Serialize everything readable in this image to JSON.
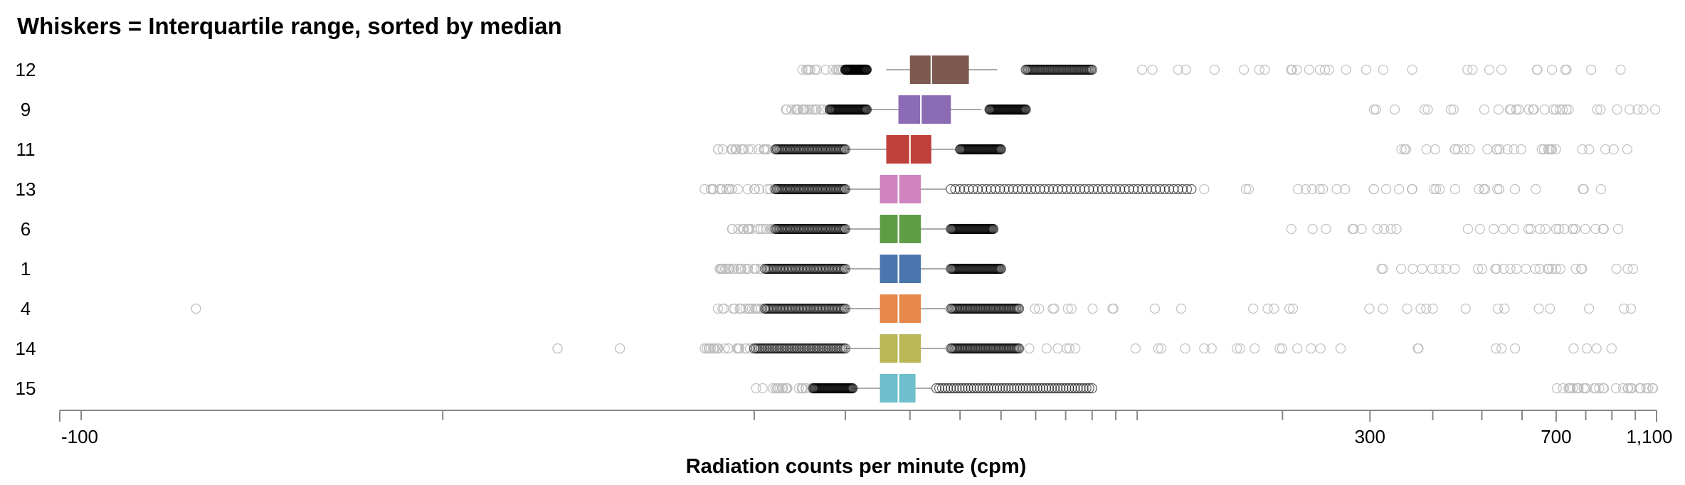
{
  "chart_data": {
    "type": "box",
    "title": "Whiskers = Interquartile range, sorted by median",
    "xlabel": "Radiation counts per minute (cpm)",
    "ylabel": "",
    "x_scale": "symlog",
    "xlim": [
      -100,
      1100
    ],
    "x_tick_labels": [
      {
        "value": -100,
        "label": "-100"
      },
      {
        "value": 300,
        "label": "300"
      },
      {
        "value": 700,
        "label": "700"
      },
      {
        "value": 1100,
        "label": "1,100"
      }
    ],
    "x_minor_ticks": [
      -90,
      -10,
      10,
      20,
      30,
      40,
      50,
      60,
      70,
      80,
      90,
      100,
      200,
      400,
      500,
      600,
      800,
      900,
      1000
    ],
    "grid": false,
    "legend": "none",
    "series": [
      {
        "name": "12",
        "color": "#7d5a50",
        "q1": 30,
        "median": 34,
        "q3": 42,
        "whisker_low": 26,
        "whisker_high": 49,
        "out_dense_low": [
          20,
          23
        ],
        "out_dense_high": [
          57,
          80
        ],
        "out_sparse_low": [
          14,
          22
        ],
        "out_sparse_high": [
          80,
          1000
        ]
      },
      {
        "name": "9",
        "color": "#8c6bb5",
        "q1": 28,
        "median": 32,
        "q3": 38,
        "whisker_low": 23,
        "whisker_high": 45,
        "out_dense_low": [
          18,
          23
        ],
        "out_dense_high": [
          47,
          57
        ],
        "out_sparse_low": [
          13,
          18
        ],
        "out_sparse_high": [
          300,
          1100
        ]
      },
      {
        "name": "11",
        "color": "#c0403a",
        "q1": 26,
        "median": 30,
        "q3": 34,
        "whisker_low": 20,
        "whisker_high": 39,
        "out_dense_low": [
          12,
          20
        ],
        "out_dense_high": [
          40,
          50
        ],
        "out_sparse_low": [
          7,
          12
        ],
        "out_sparse_high": [
          300,
          1000
        ]
      },
      {
        "name": "13",
        "color": "#cf84bf",
        "q1": 25,
        "median": 28,
        "q3": 32,
        "whisker_low": 20,
        "whisker_high": 37,
        "out_dense_low": [
          12,
          20
        ],
        "out_dense_high": [
          38,
          130
        ],
        "out_sparse_low": [
          6,
          12
        ],
        "out_sparse_high": [
          130,
          900
        ]
      },
      {
        "name": "6",
        "color": "#5f9c46",
        "q1": 25,
        "median": 28,
        "q3": 32,
        "whisker_low": 20,
        "whisker_high": 37,
        "out_dense_low": [
          12,
          20
        ],
        "out_dense_high": [
          38,
          48
        ],
        "out_sparse_low": [
          8,
          12
        ],
        "out_sparse_high": [
          200,
          1000
        ]
      },
      {
        "name": "1",
        "color": "#4a76ae",
        "q1": 25,
        "median": 28,
        "q3": 32,
        "whisker_low": 20,
        "whisker_high": 37,
        "out_dense_low": [
          11,
          20
        ],
        "out_dense_high": [
          38,
          50
        ],
        "out_sparse_low": [
          7,
          11
        ],
        "out_sparse_high": [
          300,
          1000
        ]
      },
      {
        "name": "4",
        "color": "#e5884a",
        "q1": 25,
        "median": 28,
        "q3": 32,
        "whisker_low": 20,
        "whisker_high": 37,
        "out_dense_low": [
          11,
          20
        ],
        "out_dense_high": [
          38,
          55
        ],
        "out_sparse_low": [
          7,
          11
        ],
        "out_sparse_high": [
          55,
          1000
        ]
      },
      {
        "name": "14",
        "color": "#b9b756",
        "q1": 25,
        "median": 28,
        "q3": 32,
        "whisker_low": 20,
        "whisker_high": 37,
        "out_dense_low": [
          10,
          20
        ],
        "out_dense_high": [
          38,
          55
        ],
        "out_sparse_low": [
          6,
          10
        ],
        "out_sparse_high": [
          55,
          1000
        ]
      },
      {
        "name": "15",
        "color": "#6cbfcb",
        "q1": 25,
        "median": 28,
        "q3": 31,
        "whisker_low": 21,
        "whisker_high": 34,
        "out_dense_low": [
          16,
          21
        ],
        "out_dense_high": [
          35,
          80
        ],
        "out_sparse_low": [
          10,
          16
        ],
        "out_sparse_high": [
          700,
          1100
        ]
      }
    ],
    "extreme_outliers": [
      {
        "series": "4",
        "value": -50
      },
      {
        "series": "14",
        "value": -2
      },
      {
        "series": "14",
        "value": 1
      }
    ]
  }
}
